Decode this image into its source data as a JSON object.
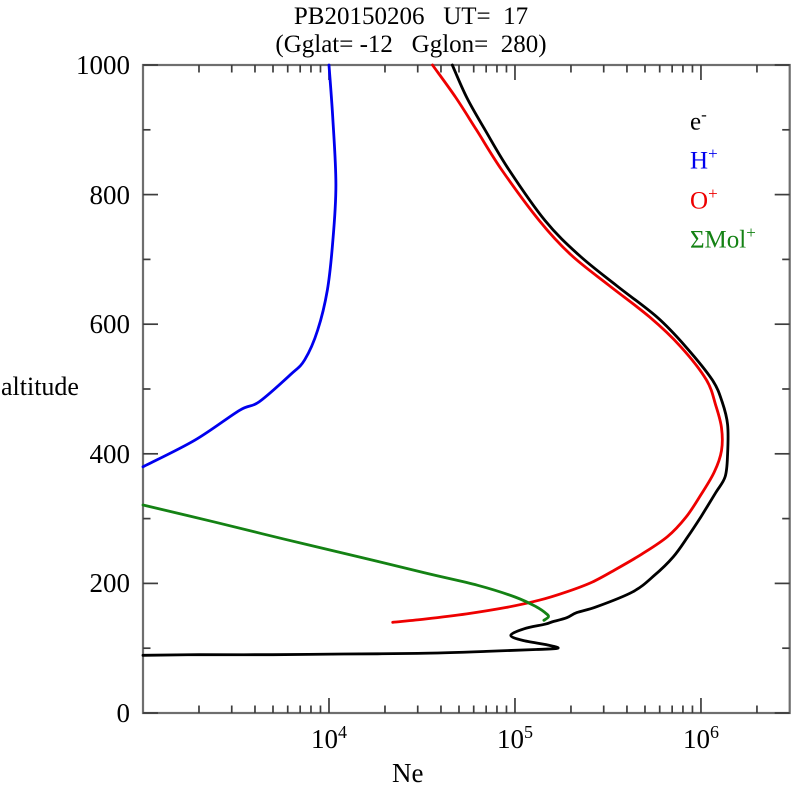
{
  "chart_data": {
    "type": "line",
    "title": "PB20150206   UT=  17",
    "subtitle": "(Gglat= -12   Gglon=  280)",
    "xlabel": "Ne",
    "ylabel": "altitude",
    "x_scale": "log",
    "xlim": [
      1000,
      3000000
    ],
    "ylim": [
      0,
      1000
    ],
    "grid": false,
    "legend_position": "top-right",
    "frame_color": "#6e6e6e",
    "tick_color": "#3d3d3d",
    "x_major_ticks": [
      {
        "value": 10000,
        "base": "10",
        "exp": "4"
      },
      {
        "value": 100000,
        "base": "10",
        "exp": "5"
      },
      {
        "value": 1000000,
        "base": "10",
        "exp": "6"
      }
    ],
    "y_ticks": [
      {
        "value": 0,
        "label": "0"
      },
      {
        "value": 200,
        "label": "200"
      },
      {
        "value": 400,
        "label": "400"
      },
      {
        "value": 600,
        "label": "600"
      },
      {
        "value": 800,
        "label": "800"
      },
      {
        "value": 1000,
        "label": "1000"
      }
    ],
    "y_minor_ticks": [
      100,
      300,
      500,
      700,
      900
    ],
    "series": [
      {
        "name": "e-",
        "color": "#000000",
        "points_format": "[electron_density_cm3, altitude_km]",
        "points": [
          [
            1000,
            89
          ],
          [
            2000,
            90
          ],
          [
            5000,
            90
          ],
          [
            12000,
            91
          ],
          [
            30000,
            92
          ],
          [
            70000,
            95
          ],
          [
            130000,
            98
          ],
          [
            170000,
            100
          ],
          [
            150000,
            105
          ],
          [
            110000,
            112
          ],
          [
            95000,
            120
          ],
          [
            112000,
            130
          ],
          [
            145000,
            137
          ],
          [
            160000,
            141
          ],
          [
            190000,
            147
          ],
          [
            215000,
            155
          ],
          [
            275000,
            164
          ],
          [
            430000,
            187
          ],
          [
            560000,
            212
          ],
          [
            710000,
            241
          ],
          [
            850000,
            272
          ],
          [
            1000000,
            303
          ],
          [
            1200000,
            340
          ],
          [
            1350000,
            365
          ],
          [
            1390000,
            400
          ],
          [
            1390000,
            445
          ],
          [
            1300000,
            480
          ],
          [
            1150000,
            514
          ],
          [
            830000,
            565
          ],
          [
            580000,
            611
          ],
          [
            350000,
            660
          ],
          [
            220000,
            707
          ],
          [
            145000,
            760
          ],
          [
            93000,
            838
          ],
          [
            69000,
            900
          ],
          [
            55000,
            950
          ],
          [
            46000,
            1000
          ]
        ]
      },
      {
        "name": "H+",
        "color": "#0000ee",
        "points_format": "[ion_density_cm3, altitude_km]",
        "points": [
          [
            1000,
            380
          ],
          [
            1900,
            421
          ],
          [
            3300,
            467
          ],
          [
            4200,
            480
          ],
          [
            6200,
            522
          ],
          [
            7400,
            545
          ],
          [
            8700,
            591
          ],
          [
            9800,
            653
          ],
          [
            10500,
            730
          ],
          [
            10900,
            815
          ],
          [
            10500,
            915
          ],
          [
            10000,
            1000
          ]
        ]
      },
      {
        "name": "O+",
        "color": "#ee0000",
        "points_format": "[ion_density_cm3, altitude_km]",
        "points": [
          [
            22000,
            140
          ],
          [
            33000,
            145
          ],
          [
            55000,
            153
          ],
          [
            90000,
            163
          ],
          [
            135000,
            174
          ],
          [
            190000,
            187
          ],
          [
            260000,
            202
          ],
          [
            350000,
            222
          ],
          [
            480000,
            245
          ],
          [
            660000,
            272
          ],
          [
            830000,
            302
          ],
          [
            1000000,
            337
          ],
          [
            1180000,
            372
          ],
          [
            1290000,
            405
          ],
          [
            1290000,
            440
          ],
          [
            1200000,
            475
          ],
          [
            1070000,
            514
          ],
          [
            780000,
            565
          ],
          [
            530000,
            611
          ],
          [
            320000,
            660
          ],
          [
            200000,
            707
          ],
          [
            135000,
            760
          ],
          [
            85000,
            838
          ],
          [
            62000,
            900
          ],
          [
            48000,
            950
          ],
          [
            36000,
            1000
          ]
        ]
      },
      {
        "name": "ΣMol+",
        "color": "#148214",
        "points_format": "[ion_density_cm3, altitude_km]",
        "points": [
          [
            1000,
            321
          ],
          [
            2400,
            295
          ],
          [
            5800,
            268
          ],
          [
            14000,
            242
          ],
          [
            33000,
            216
          ],
          [
            63000,
            197
          ],
          [
            100000,
            179
          ],
          [
            130000,
            164
          ],
          [
            148000,
            153
          ],
          [
            151000,
            148
          ],
          [
            143000,
            143
          ]
        ]
      }
    ]
  },
  "legend": {
    "items": [
      {
        "base": "e",
        "sup": "-",
        "color": "#000000"
      },
      {
        "base": "H",
        "sup": "+",
        "color": "#0000ee"
      },
      {
        "base": "O",
        "sup": "+",
        "color": "#ee0000"
      },
      {
        "base": "ΣMol",
        "sup": "+",
        "color": "#148214"
      }
    ]
  }
}
